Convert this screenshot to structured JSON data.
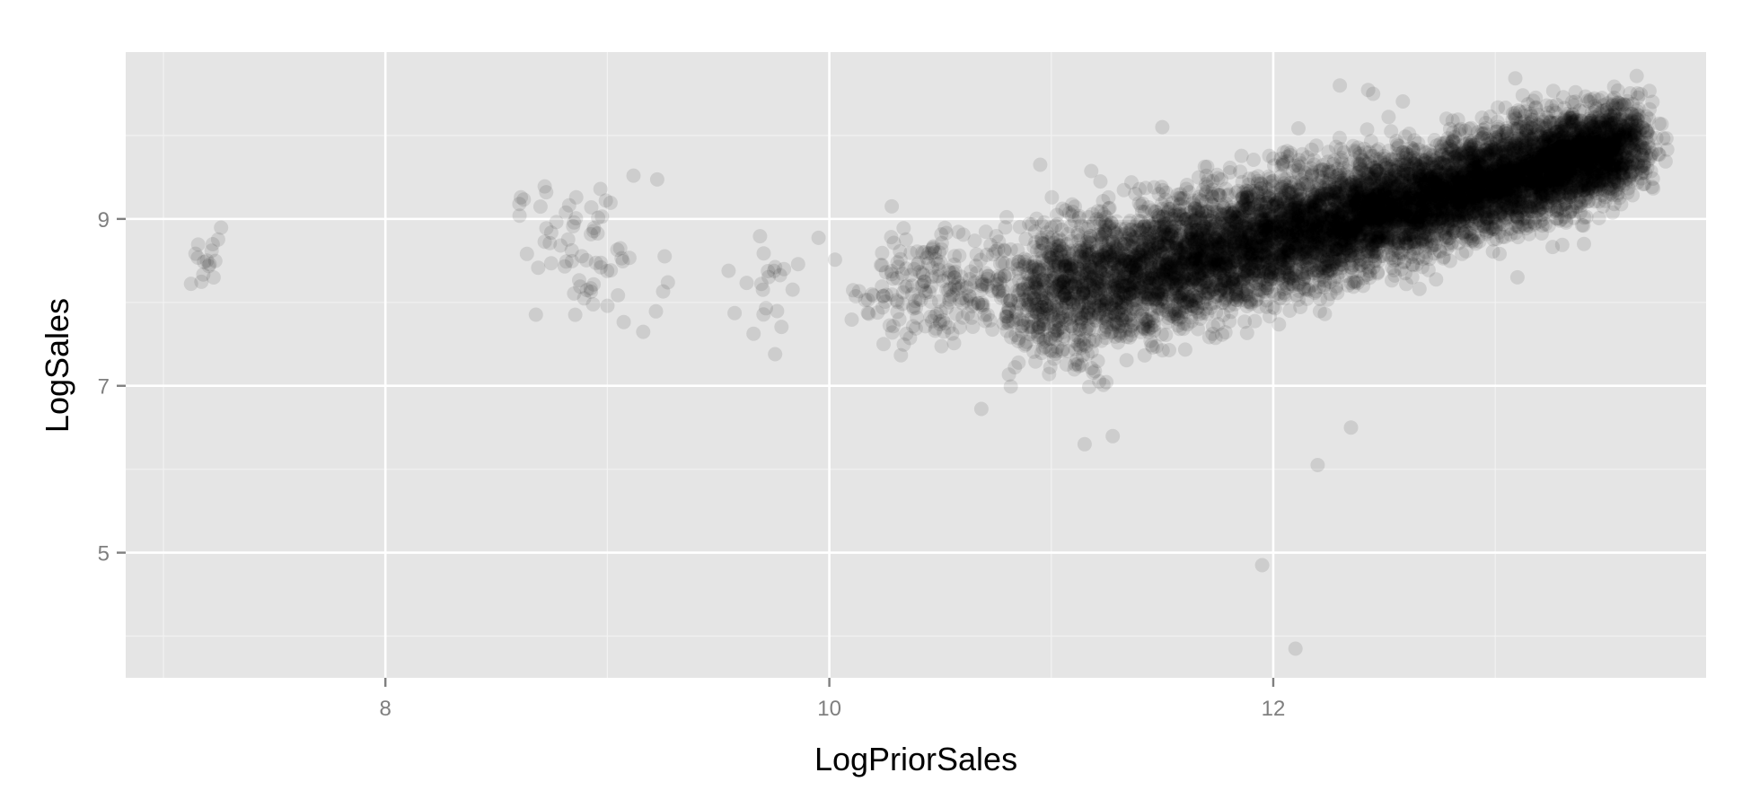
{
  "chart_data": {
    "type": "scatter",
    "title": "",
    "xlabel": "LogPriorSales",
    "ylabel": "LogSales",
    "xlim": [
      6.83,
      13.95
    ],
    "ylim": [
      3.5,
      11.0
    ],
    "x_ticks": [
      8,
      10,
      12
    ],
    "x_tick_labels": [
      "8",
      "10",
      "12"
    ],
    "y_ticks": [
      5,
      7,
      9
    ],
    "y_tick_labels": [
      "5",
      "7",
      "9"
    ],
    "x_minor_ticks": [
      7,
      9,
      11,
      13
    ],
    "y_minor_ticks": [
      4,
      6,
      8,
      10
    ],
    "grid": true,
    "legend": "none",
    "point_color": "#000000",
    "point_alpha": 0.1,
    "panel_color": "#e5e5e5",
    "clusters": [
      {
        "x_center": 7.2,
        "y_center": 8.45,
        "x_spread": 0.06,
        "y_spread": 0.15,
        "count": 16
      },
      {
        "x_center": 8.9,
        "y_center": 8.6,
        "x_spread": 0.16,
        "y_spread": 0.45,
        "count": 70
      },
      {
        "x_center": 9.7,
        "y_center": 8.05,
        "x_spread": 0.06,
        "y_spread": 0.35,
        "count": 20
      },
      {
        "x_center": 10.55,
        "y_center": 8.2,
        "x_spread": 0.22,
        "y_spread": 0.35,
        "count": 260
      }
    ],
    "main_trend": {
      "x_range": [
        10.85,
        13.6
      ],
      "y_at_start": 8.0,
      "slope": 0.68,
      "spread": 0.42,
      "count": 9000
    },
    "outliers": [
      {
        "x": 10.95,
        "y": 9.65
      },
      {
        "x": 11.5,
        "y": 10.1
      },
      {
        "x": 12.3,
        "y": 10.6
      },
      {
        "x": 12.45,
        "y": 10.5
      },
      {
        "x": 12.2,
        "y": 6.05
      },
      {
        "x": 12.35,
        "y": 6.5
      },
      {
        "x": 11.95,
        "y": 4.85
      },
      {
        "x": 12.1,
        "y": 3.85
      },
      {
        "x": 11.15,
        "y": 6.3
      },
      {
        "x": 13.1,
        "y": 8.3
      },
      {
        "x": 13.4,
        "y": 8.7
      }
    ]
  }
}
